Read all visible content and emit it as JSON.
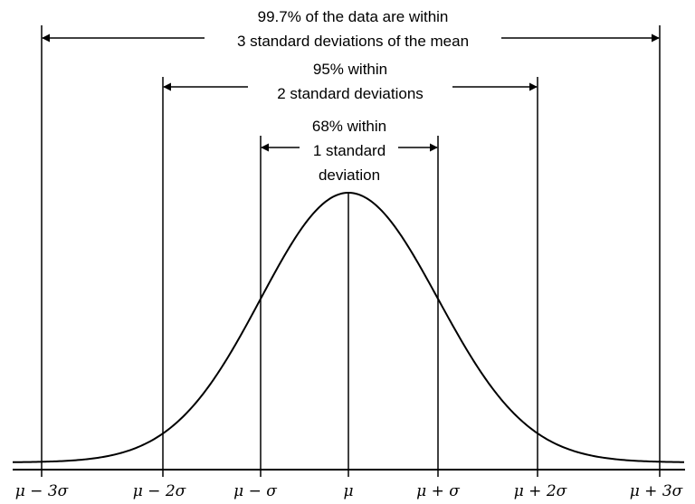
{
  "annotations": {
    "three_sigma": {
      "line1": "99.7% of the data are within",
      "line2": "3 standard deviations of the mean"
    },
    "two_sigma": {
      "line1": "95% within",
      "line2": "2 standard deviations"
    },
    "one_sigma": {
      "line1": "68% within",
      "line2": "1 standard",
      "line3": "deviation"
    }
  },
  "axis_ticks": [
    "μ − 3σ",
    "μ − 2σ",
    "μ − σ",
    "μ",
    "μ + σ",
    "μ + 2σ",
    "μ + 3σ"
  ],
  "colors": {
    "ink": "#000000",
    "background": "#ffffff"
  }
}
